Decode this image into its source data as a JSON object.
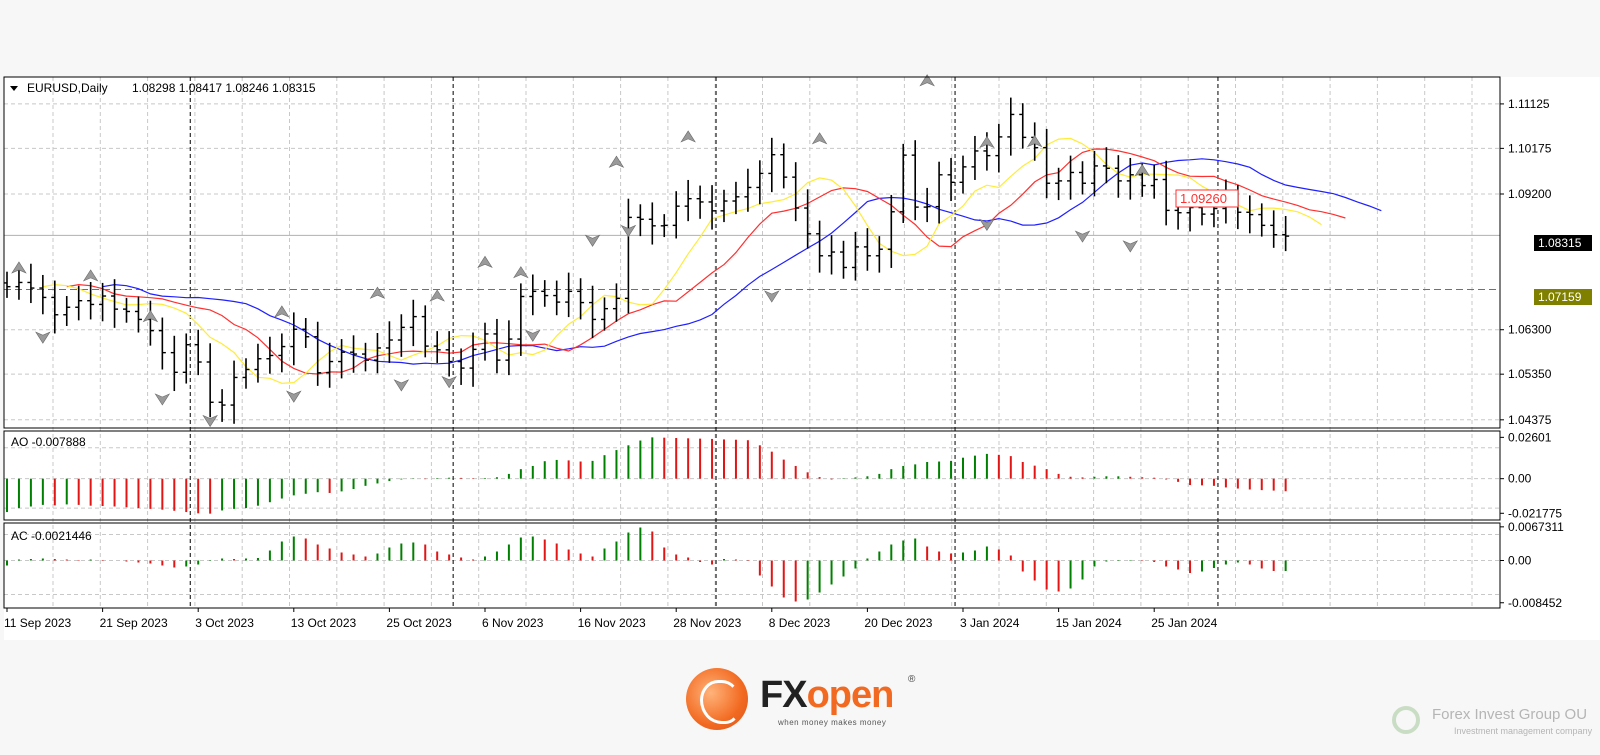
{
  "chart_data": {
    "type": "candlestick",
    "main": {
      "symbol_label": "EURUSD,Daily",
      "ohlc_readout": "1.08298 1.08417 1.08246 1.08315",
      "ylim": [
        1.042,
        1.117
      ],
      "y_ticks": [
        "1.11125",
        "1.10175",
        "1.09200",
        "1.06300",
        "1.05350",
        "1.04375"
      ],
      "current_price_label": "1.08315",
      "current_price": 1.08315,
      "support_level_label": "1.07159",
      "support_level": 1.07159,
      "ma_end_label": "1.09260",
      "ma_end_value": 1.0926,
      "x_tick_labels": [
        "11 Sep 2023",
        "21 Sep 2023",
        "3 Oct 2023",
        "13 Oct 2023",
        "25 Oct 2023",
        "6 Nov 2023",
        "16 Nov 2023",
        "28 Nov 2023",
        "8 Dec 2023",
        "20 Dec 2023",
        "3 Jan 2024",
        "15 Jan 2024",
        "25 Jan 2024"
      ],
      "x_tick_bars": [
        0,
        8,
        16,
        24,
        32,
        40,
        48,
        56,
        64,
        72,
        80,
        88,
        96
      ],
      "period_separator_bars": [
        15,
        37,
        59,
        79,
        101
      ],
      "bars_close": [
        1.0722,
        1.0731,
        1.0719,
        1.0699,
        1.0662,
        1.0678,
        1.0692,
        1.0684,
        1.0702,
        1.0674,
        1.0669,
        1.0652,
        1.0628,
        1.0581,
        1.0539,
        1.0598,
        1.0561,
        1.0475,
        1.0469,
        1.0528,
        1.0545,
        1.0568,
        1.0575,
        1.0594,
        1.0631,
        1.0615,
        1.0538,
        1.0562,
        1.0582,
        1.0578,
        1.0565,
        1.0591,
        1.0608,
        1.0635,
        1.0658,
        1.0595,
        1.0587,
        1.0562,
        1.0548,
        1.0588,
        1.0621,
        1.0565,
        1.061,
        1.0701,
        1.0712,
        1.0703,
        1.0689,
        1.0712,
        1.0688,
        1.0652,
        1.0675,
        1.0697,
        1.087,
        1.0866,
        1.0852,
        1.0853,
        1.0894,
        1.091,
        1.0903,
        1.0884,
        1.0905,
        1.0914,
        1.0934,
        1.0964,
        1.1004,
        1.0956,
        1.089,
        1.0835,
        1.0788,
        1.0796,
        1.0763,
        1.0807,
        1.0788,
        1.0802,
        1.0882,
        1.1003,
        1.0892,
        1.0893,
        1.0961,
        1.0945,
        1.0978,
        1.1012,
        1.1002,
        1.1042,
        1.109,
        1.1041,
        1.1019,
        1.0943,
        1.0948,
        1.0966,
        1.0943,
        1.098,
        1.0975,
        1.0948,
        1.0961,
        1.0938,
        1.0951,
        1.0885,
        1.088,
        1.0891,
        1.0877,
        1.0889,
        1.0911,
        1.0881,
        1.0876,
        1.0853,
        1.0833,
        1.083
      ],
      "fractals": [
        {
          "bar": 1,
          "dir": "up",
          "price": 1.0762
        },
        {
          "bar": 3,
          "dir": "down",
          "price": 1.0614
        },
        {
          "bar": 7,
          "dir": "up",
          "price": 1.0745
        },
        {
          "bar": 12,
          "dir": "up",
          "price": 1.0658
        },
        {
          "bar": 13,
          "dir": "down",
          "price": 1.0482
        },
        {
          "bar": 17,
          "dir": "down",
          "price": 1.0436
        },
        {
          "bar": 23,
          "dir": "up",
          "price": 1.0668
        },
        {
          "bar": 24,
          "dir": "down",
          "price": 1.0488
        },
        {
          "bar": 31,
          "dir": "up",
          "price": 1.0708
        },
        {
          "bar": 33,
          "dir": "down",
          "price": 1.0512
        },
        {
          "bar": 36,
          "dir": "up",
          "price": 1.0702
        },
        {
          "bar": 37,
          "dir": "down",
          "price": 1.0519
        },
        {
          "bar": 40,
          "dir": "up",
          "price": 1.0774
        },
        {
          "bar": 43,
          "dir": "up",
          "price": 1.0752
        },
        {
          "bar": 44,
          "dir": "down",
          "price": 1.0618
        },
        {
          "bar": 49,
          "dir": "down",
          "price": 1.0821
        },
        {
          "bar": 51,
          "dir": "up",
          "price": 1.0988
        },
        {
          "bar": 52,
          "dir": "down",
          "price": 1.0842
        },
        {
          "bar": 57,
          "dir": "up",
          "price": 1.1042
        },
        {
          "bar": 64,
          "dir": "down",
          "price": 1.0702
        },
        {
          "bar": 68,
          "dir": "up",
          "price": 1.1038
        },
        {
          "bar": 77,
          "dir": "up",
          "price": 1.1162
        },
        {
          "bar": 82,
          "dir": "up",
          "price": 1.103
        },
        {
          "bar": 82,
          "dir": "down",
          "price": 1.0855
        },
        {
          "bar": 86,
          "dir": "up",
          "price": 1.1032
        },
        {
          "bar": 90,
          "dir": "down",
          "price": 1.083
        },
        {
          "bar": 94,
          "dir": "down",
          "price": 1.0809
        },
        {
          "bar": 95,
          "dir": "up",
          "price": 1.097
        }
      ]
    },
    "ao": {
      "label": "AO -0.007888",
      "y_ticks": [
        "0.02601",
        "0.00",
        "-0.021775"
      ],
      "ylim": [
        -0.026,
        0.03
      ],
      "values": [
        -0.021,
        -0.0185,
        -0.0175,
        -0.0165,
        -0.0168,
        -0.0162,
        -0.0165,
        -0.017,
        -0.0172,
        -0.0175,
        -0.018,
        -0.0185,
        -0.019,
        -0.0195,
        -0.0202,
        -0.021,
        -0.0218,
        -0.022,
        -0.02,
        -0.019,
        -0.0185,
        -0.017,
        -0.0148,
        -0.0125,
        -0.0105,
        -0.0095,
        -0.0085,
        -0.009,
        -0.008,
        -0.0065,
        -0.0045,
        -0.003,
        -0.0015,
        -0.0005,
        0.0002,
        -0.0003,
        0.0004,
        0.0006,
        0.0005,
        0.0003,
        0.0004,
        0.0009,
        0.003,
        0.006,
        0.008,
        0.011,
        0.0118,
        0.0115,
        0.0108,
        0.0112,
        0.0148,
        0.018,
        0.021,
        0.024,
        0.026,
        0.0258,
        0.0256,
        0.0254,
        0.0252,
        0.025,
        0.0247,
        0.0245,
        0.0242,
        0.021,
        0.017,
        0.012,
        0.008,
        0.004,
        0.001,
        -0.0005,
        0.0003,
        0.0008,
        0.0015,
        0.003,
        0.006,
        0.008,
        0.009,
        0.0105,
        0.0108,
        0.0112,
        0.0132,
        0.0145,
        0.0156,
        0.015,
        0.0142,
        0.0105,
        0.0082,
        0.006,
        0.003,
        0.0012,
        0.0008,
        0.0012,
        0.0015,
        0.0015,
        0.0012,
        0.0009,
        0.0006,
        -0.0005,
        -0.002,
        -0.004,
        -0.0042,
        -0.0045,
        -0.0055,
        -0.0062,
        -0.0068,
        -0.0072,
        -0.0075,
        -0.0079
      ],
      "up_color": "#008000",
      "down_color": "#e31414"
    },
    "ac": {
      "label": "AC -0.0021446",
      "y_ticks": [
        "0.0067311",
        "0.00",
        "-0.008452"
      ],
      "ylim": [
        -0.0095,
        0.0075
      ],
      "values": [
        -0.001,
        0.0002,
        0.0003,
        0.0004,
        0.0003,
        0.0002,
        0.0001,
        0.0002,
        0.0001,
        0.0,
        -0.0002,
        -0.0004,
        -0.0006,
        -0.001,
        -0.0014,
        -0.0012,
        -0.0008,
        0.0001,
        0.0004,
        0.0003,
        0.0004,
        0.0005,
        0.002,
        0.0038,
        0.0048,
        0.0044,
        0.0032,
        0.0024,
        0.0016,
        0.0012,
        0.0008,
        0.0014,
        0.0026,
        0.0034,
        0.0036,
        0.0032,
        0.0018,
        0.0012,
        0.0006,
        0.0002,
        0.0008,
        0.0018,
        0.0032,
        0.0046,
        0.0048,
        0.0042,
        0.0034,
        0.0022,
        0.0014,
        0.0008,
        0.0024,
        0.0038,
        0.0056,
        0.0066,
        0.0058,
        0.0026,
        0.0012,
        0.0006,
        -0.0003,
        -0.0008,
        0.0003,
        0.0002,
        0.0001,
        -0.003,
        -0.0052,
        -0.0074,
        -0.0082,
        -0.0078,
        -0.0064,
        -0.0048,
        -0.0032,
        -0.0016,
        0.0004,
        0.0018,
        0.0032,
        0.004,
        0.0044,
        0.0028,
        0.0018,
        0.0014,
        0.0016,
        0.002,
        0.0028,
        0.0022,
        0.001,
        -0.0022,
        -0.004,
        -0.0058,
        -0.0062,
        -0.0056,
        -0.0038,
        -0.0012,
        -0.0002,
        0.0001,
        0.0001,
        -0.0001,
        -0.0003,
        -0.0012,
        -0.0018,
        -0.0025,
        -0.0022,
        -0.0015,
        -0.0008,
        -0.0004,
        -0.0008,
        -0.0016,
        -0.0021,
        -0.0021
      ],
      "up_color": "#008000",
      "down_color": "#e31414"
    },
    "ma_colors": {
      "yellow": "#ffeb3b",
      "red": "#ff3030",
      "blue": "#2020ff"
    },
    "level_color": "#808000",
    "grid": true
  },
  "branding": {
    "logo_fx": "FX",
    "logo_open": "open",
    "logo_reg": "®",
    "logo_tagline": "when money makes money",
    "watermark_name": "Forex Invest Group OU",
    "watermark_sub": "Investment management company"
  }
}
